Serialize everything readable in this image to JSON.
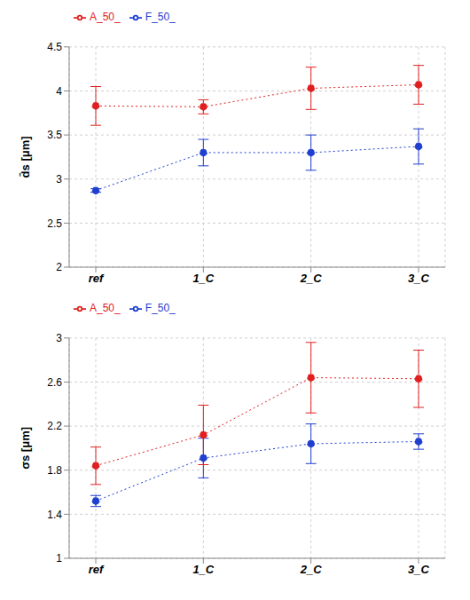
{
  "chart_data": [
    {
      "type": "line",
      "y_label": "d̄s [μm]",
      "categories": [
        "ref",
        "1_C",
        "2_C",
        "3_C"
      ],
      "series": [
        {
          "name": "F_50_",
          "color": "#1f3fd0",
          "values": [
            2.87,
            3.3,
            3.3,
            3.37
          ],
          "errors": [
            0.02,
            0.15,
            0.2,
            0.2
          ],
          "marker": "circle",
          "line_style": "dotted"
        },
        {
          "name": "A_50_",
          "color": "#e02020",
          "values": [
            3.83,
            3.82,
            4.03,
            4.07
          ],
          "errors": [
            0.22,
            0.08,
            0.24,
            0.22
          ],
          "marker": "circle",
          "line_style": "dotted"
        }
      ],
      "ylim": [
        2,
        4.5
      ],
      "yticks": [
        2,
        2.5,
        3,
        3.5,
        4,
        4.5
      ],
      "grid": true,
      "legend": "upper left"
    },
    {
      "type": "line",
      "y_label": "σs [μm]",
      "categories": [
        "ref",
        "1_C",
        "2_C",
        "3_C"
      ],
      "series": [
        {
          "name": "F_50_",
          "color": "#1f3fd0",
          "values": [
            1.52,
            1.91,
            2.04,
            2.06
          ],
          "errors": [
            0.05,
            0.18,
            0.18,
            0.07
          ],
          "marker": "circle",
          "line_style": "dotted"
        },
        {
          "name": "A_50_",
          "color": "#e02020",
          "values": [
            1.84,
            2.12,
            2.64,
            2.63
          ],
          "errors": [
            0.17,
            0.27,
            0.32,
            0.26
          ],
          "marker": "circle",
          "line_style": "dotted"
        }
      ],
      "ylim": [
        1,
        3
      ],
      "yticks": [
        1,
        1.4,
        1.8,
        2.2,
        2.6,
        3
      ],
      "grid": true,
      "legend": "upper left"
    }
  ]
}
